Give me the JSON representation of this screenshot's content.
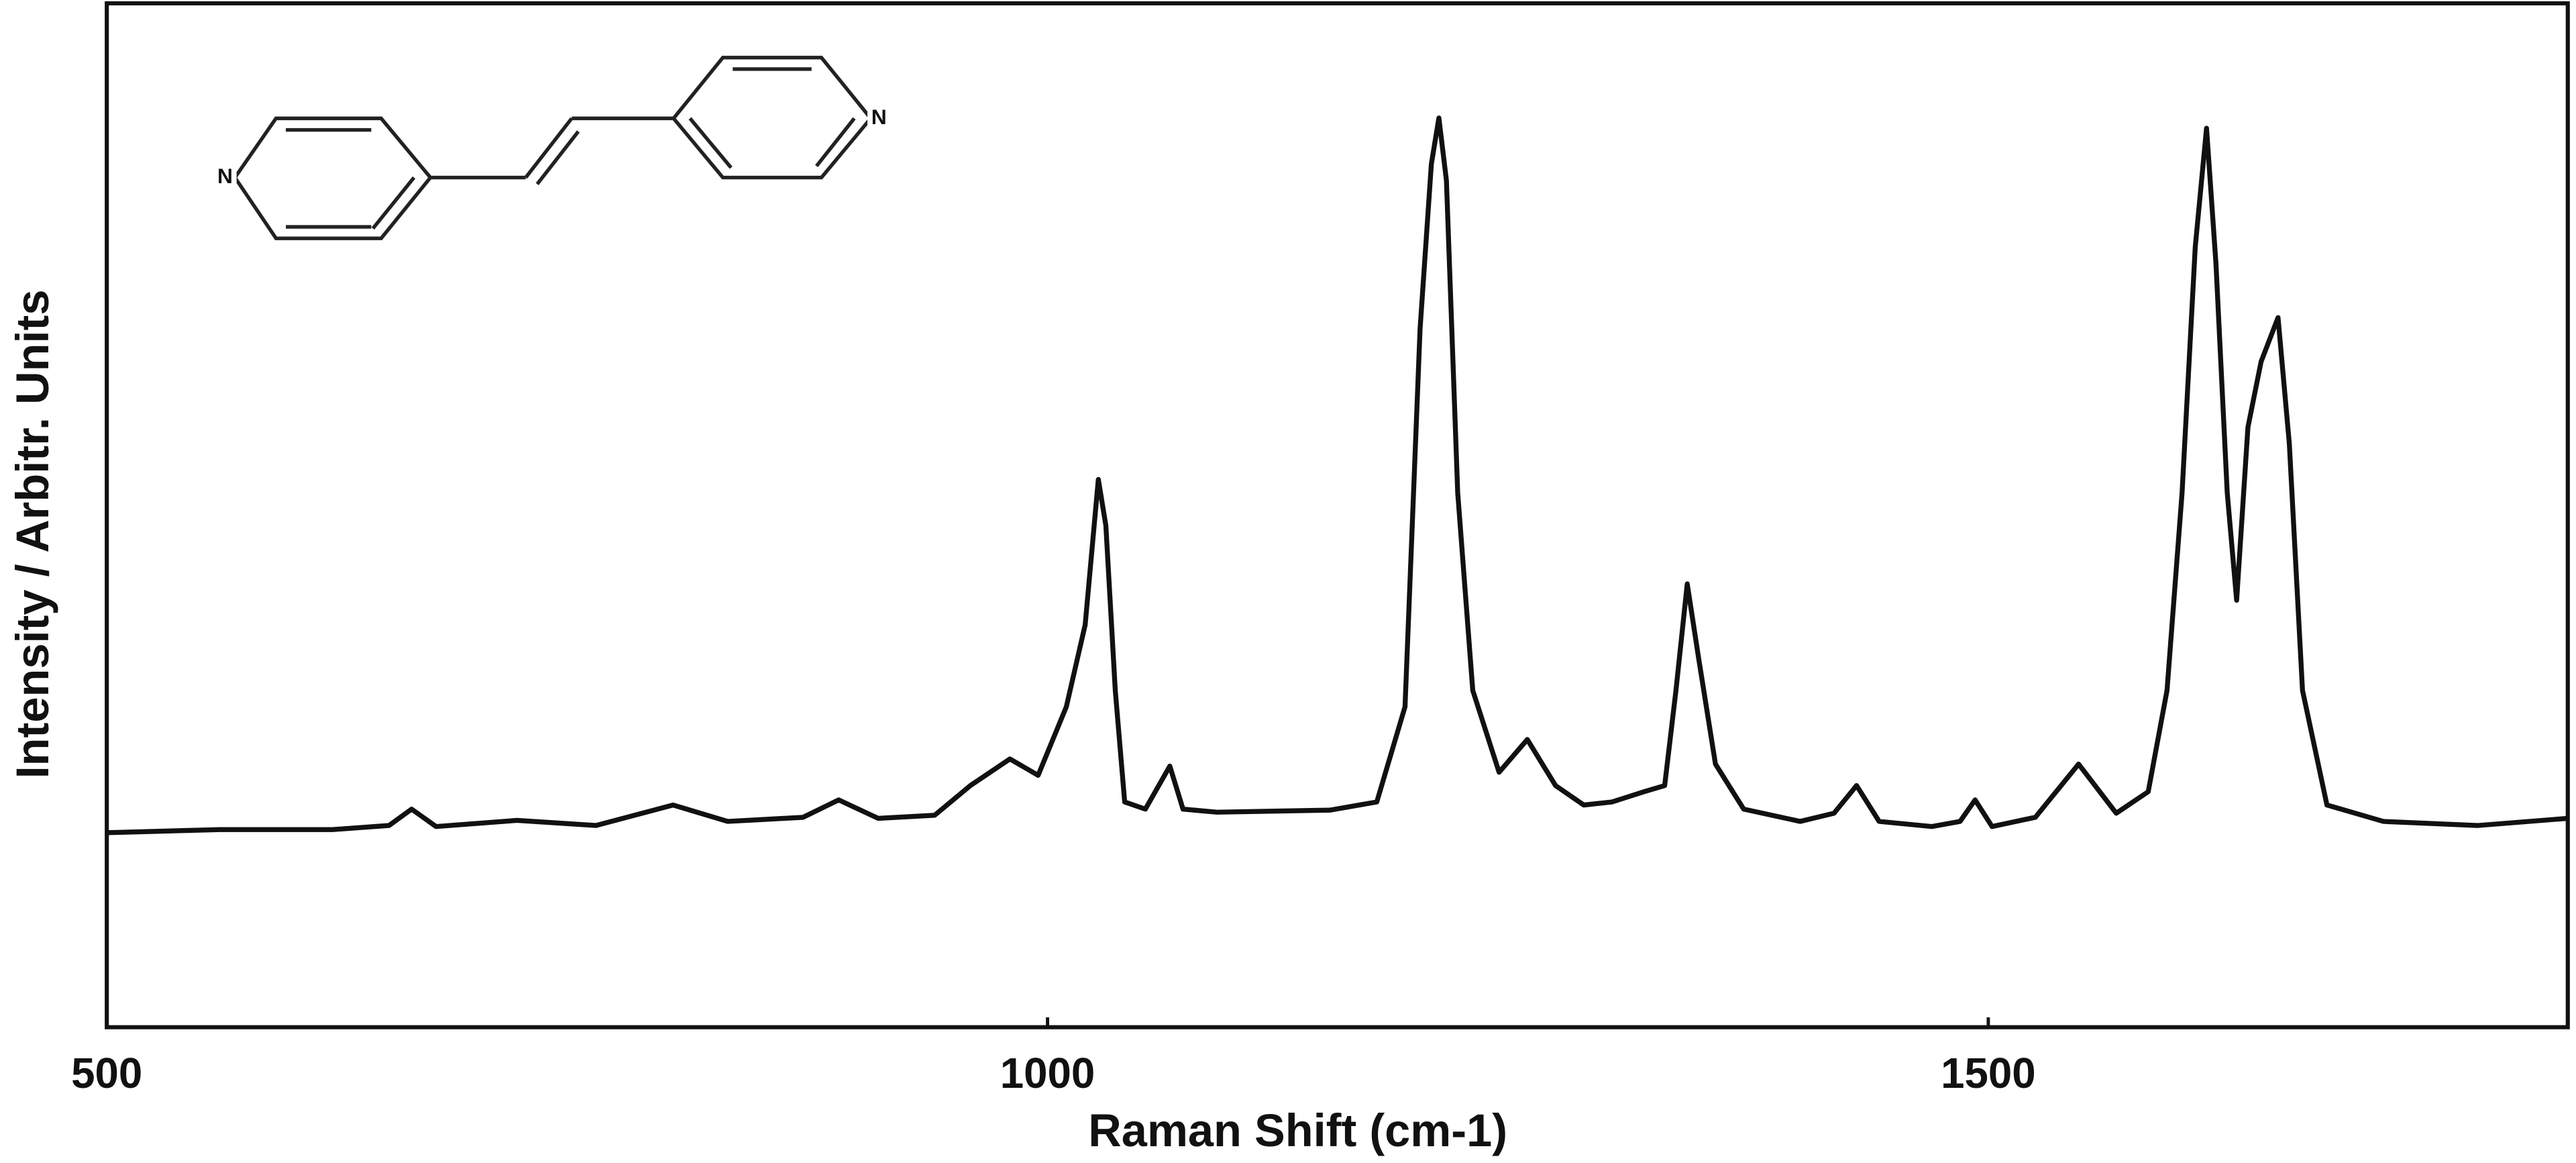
{
  "chart_data": {
    "type": "line",
    "x_label": "Raman Shift (cm-1)",
    "y_label": "Intensity / Arbitr. Units",
    "annotations": [
      "N",
      "N"
    ],
    "color": "#111111",
    "xlim": [
      500,
      1808
    ],
    "ylim": [
      0,
      100
    ],
    "xticks": [
      500,
      1000,
      1500
    ],
    "x": [
      500,
      560,
      620,
      650,
      662,
      675,
      718,
      760,
      801,
      830,
      870,
      889,
      910,
      940,
      959,
      980,
      995,
      1010,
      1020,
      1027,
      1031,
      1036,
      1041,
      1052,
      1065,
      1072,
      1090,
      1150,
      1175,
      1190,
      1198,
      1204,
      1208,
      1212,
      1218,
      1226,
      1240,
      1255,
      1270,
      1285,
      1300,
      1317,
      1328,
      1334,
      1340,
      1346,
      1355,
      1370,
      1400,
      1418,
      1430,
      1442,
      1470,
      1485,
      1493,
      1502,
      1525,
      1548,
      1568,
      1585,
      1595,
      1603,
      1610,
      1616,
      1621,
      1627,
      1632,
      1638,
      1645,
      1654,
      1660,
      1667,
      1680,
      1710,
      1760,
      1808
    ],
    "values": [
      19.0,
      19.3,
      19.3,
      19.7,
      21.3,
      19.6,
      20.2,
      19.7,
      21.7,
      20.1,
      20.5,
      22.2,
      20.4,
      20.7,
      23.6,
      26.2,
      24.6,
      31.3,
      39.3,
      53.5,
      49.0,
      32.9,
      22.0,
      21.3,
      25.5,
      21.3,
      21.0,
      21.2,
      22.0,
      31.3,
      68.2,
      84.3,
      88.8,
      82.7,
      52.2,
      32.9,
      24.9,
      28.1,
      23.6,
      21.7,
      22.0,
      23.0,
      23.6,
      32.9,
      43.3,
      36.1,
      25.7,
      21.3,
      20.1,
      20.9,
      23.6,
      20.1,
      19.6,
      20.1,
      22.2,
      19.6,
      20.5,
      25.7,
      20.9,
      23.0,
      32.9,
      52.2,
      76.2,
      87.8,
      74.6,
      52.2,
      41.7,
      58.6,
      65.0,
      69.3,
      57.0,
      32.9,
      21.7,
      20.1,
      19.7,
      20.4
    ]
  }
}
